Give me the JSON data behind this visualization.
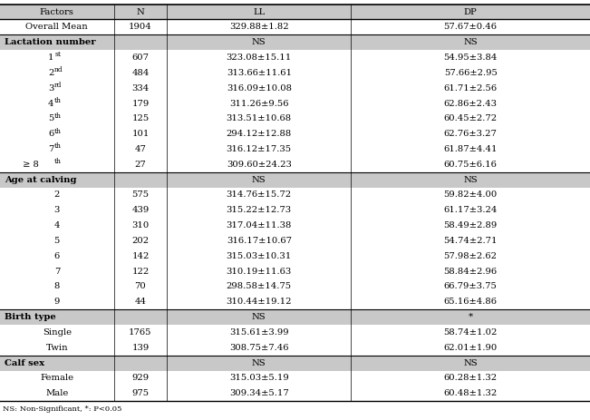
{
  "footnote": "NS: Non-Significant, *: P<0.05",
  "header_bg": "#c8c8c8",
  "section_bg": "#c8c8c8",
  "rows": [
    {
      "type": "header",
      "cells": [
        "Factors",
        "N",
        "LL",
        "DP"
      ]
    },
    {
      "type": "data2",
      "cells": [
        "Overall Mean",
        "1904",
        "329.88±1.82",
        "57.67±0.46"
      ]
    },
    {
      "type": "section",
      "cells": [
        "Lactation number",
        "",
        "NS",
        "NS"
      ]
    },
    {
      "type": "data",
      "cells": [
        "1",
        "st",
        "607",
        "323.08±15.11",
        "54.95±3.84"
      ]
    },
    {
      "type": "data",
      "cells": [
        "2",
        "nd",
        "484",
        "313.66±11.61",
        "57.66±2.95"
      ]
    },
    {
      "type": "data",
      "cells": [
        "3",
        "rd",
        "334",
        "316.09±10.08",
        "61.71±2.56"
      ]
    },
    {
      "type": "data",
      "cells": [
        "4",
        "th",
        "179",
        "311.26±9.56",
        "62.86±2.43"
      ]
    },
    {
      "type": "data",
      "cells": [
        "5",
        "th",
        "125",
        "313.51±10.68",
        "60.45±2.72"
      ]
    },
    {
      "type": "data",
      "cells": [
        "6",
        "th",
        "101",
        "294.12±12.88",
        "62.76±3.27"
      ]
    },
    {
      "type": "data",
      "cells": [
        "7",
        "th",
        "47",
        "316.12±17.35",
        "61.87±4.41"
      ]
    },
    {
      "type": "data_ge",
      "cells": [
        "8",
        "th",
        "27",
        "309.60±24.23",
        "60.75±6.16"
      ]
    },
    {
      "type": "section",
      "cells": [
        "Age at calving",
        "",
        "NS",
        "NS"
      ]
    },
    {
      "type": "data_plain",
      "cells": [
        "2",
        "575",
        "314.76±15.72",
        "59.82±4.00"
      ]
    },
    {
      "type": "data_plain",
      "cells": [
        "3",
        "439",
        "315.22±12.73",
        "61.17±3.24"
      ]
    },
    {
      "type": "data_plain",
      "cells": [
        "4",
        "310",
        "317.04±11.38",
        "58.49±2.89"
      ]
    },
    {
      "type": "data_plain",
      "cells": [
        "5",
        "202",
        "316.17±10.67",
        "54.74±2.71"
      ]
    },
    {
      "type": "data_plain",
      "cells": [
        "6",
        "142",
        "315.03±10.31",
        "57.98±2.62"
      ]
    },
    {
      "type": "data_plain",
      "cells": [
        "7",
        "122",
        "310.19±11.63",
        "58.84±2.96"
      ]
    },
    {
      "type": "data_plain",
      "cells": [
        "8",
        "70",
        "298.58±14.75",
        "66.79±3.75"
      ]
    },
    {
      "type": "data_plain",
      "cells": [
        "9",
        "44",
        "310.44±19.12",
        "65.16±4.86"
      ]
    },
    {
      "type": "section",
      "cells": [
        "Birth type",
        "",
        "NS",
        "*"
      ]
    },
    {
      "type": "data_plain",
      "cells": [
        "Single",
        "1765",
        "315.61±3.99",
        "58.74±1.02"
      ]
    },
    {
      "type": "data_plain",
      "cells": [
        "Twin",
        "139",
        "308.75±7.46",
        "62.01±1.90"
      ]
    },
    {
      "type": "section",
      "cells": [
        "Calf sex",
        "",
        "NS",
        "NS"
      ]
    },
    {
      "type": "data_plain",
      "cells": [
        "Female",
        "929",
        "315.03±5.19",
        "60.28±1.32"
      ]
    },
    {
      "type": "data_plain",
      "cells": [
        "Male",
        "975",
        "309.34±5.17",
        "60.48±1.32"
      ]
    }
  ],
  "col_bounds": [
    0.0,
    0.193,
    0.283,
    0.595,
    1.0
  ],
  "fontsize": 7.2,
  "sup_fontsize": 5.5
}
